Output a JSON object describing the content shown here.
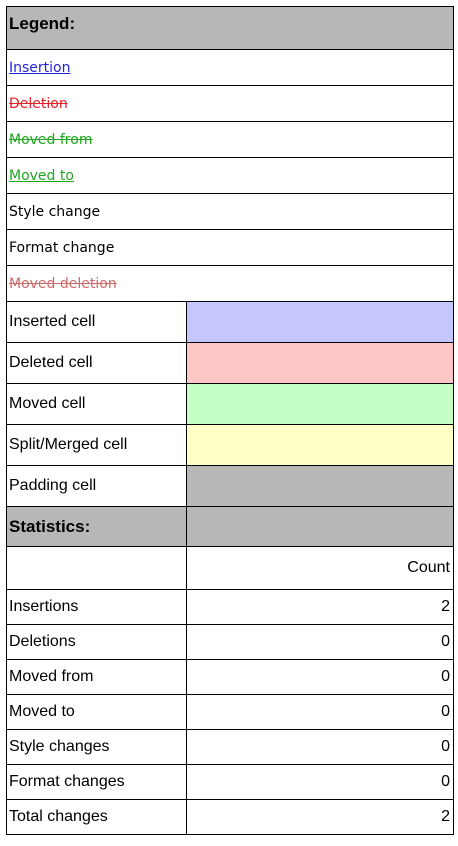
{
  "legend": {
    "title": "Legend:",
    "items": [
      {
        "label": "Insertion"
      },
      {
        "label": "Deletion"
      },
      {
        "label": "Moved from"
      },
      {
        "label": "Moved to"
      },
      {
        "label": "Style change"
      },
      {
        "label": "Format change"
      },
      {
        "label": "Moved deletion"
      }
    ],
    "cells": [
      {
        "label": "Inserted cell",
        "color": "#c6c6ff"
      },
      {
        "label": "Deleted cell",
        "color": "#ffc6c6"
      },
      {
        "label": "Moved cell",
        "color": "#c6ffc6"
      },
      {
        "label": "Split/Merged cell",
        "color": "#ffffc6"
      },
      {
        "label": "Padding cell",
        "color": "#b7b7b7"
      }
    ]
  },
  "statistics": {
    "title": "Statistics:",
    "count_header": "Count",
    "rows": [
      {
        "label": "Insertions",
        "count": "2"
      },
      {
        "label": "Deletions",
        "count": "0"
      },
      {
        "label": "Moved from",
        "count": "0"
      },
      {
        "label": "Moved to",
        "count": "0"
      },
      {
        "label": "Style changes",
        "count": "0"
      },
      {
        "label": "Format changes",
        "count": "0"
      },
      {
        "label": "Total changes",
        "count": "2"
      }
    ]
  }
}
